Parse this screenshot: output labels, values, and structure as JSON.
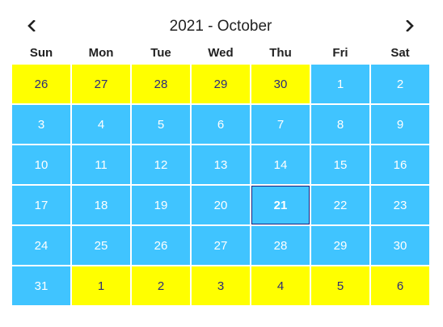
{
  "calendar": {
    "title": "2021 - October",
    "prev_icon": "chevron-left-icon",
    "next_icon": "chevron-right-icon",
    "weekdays": [
      "Sun",
      "Mon",
      "Tue",
      "Wed",
      "Thu",
      "Fri",
      "Sat"
    ],
    "days": [
      {
        "label": "26",
        "type": "other"
      },
      {
        "label": "27",
        "type": "other"
      },
      {
        "label": "28",
        "type": "other"
      },
      {
        "label": "29",
        "type": "other"
      },
      {
        "label": "30",
        "type": "other"
      },
      {
        "label": "1",
        "type": "current"
      },
      {
        "label": "2",
        "type": "current"
      },
      {
        "label": "3",
        "type": "current"
      },
      {
        "label": "4",
        "type": "current"
      },
      {
        "label": "5",
        "type": "current"
      },
      {
        "label": "6",
        "type": "current"
      },
      {
        "label": "7",
        "type": "current"
      },
      {
        "label": "8",
        "type": "current"
      },
      {
        "label": "9",
        "type": "current"
      },
      {
        "label": "10",
        "type": "current"
      },
      {
        "label": "11",
        "type": "current"
      },
      {
        "label": "12",
        "type": "current"
      },
      {
        "label": "13",
        "type": "current"
      },
      {
        "label": "14",
        "type": "current"
      },
      {
        "label": "15",
        "type": "current"
      },
      {
        "label": "16",
        "type": "current"
      },
      {
        "label": "17",
        "type": "current"
      },
      {
        "label": "18",
        "type": "current"
      },
      {
        "label": "19",
        "type": "current"
      },
      {
        "label": "20",
        "type": "current"
      },
      {
        "label": "21",
        "type": "current",
        "today": true
      },
      {
        "label": "22",
        "type": "current"
      },
      {
        "label": "23",
        "type": "current"
      },
      {
        "label": "24",
        "type": "current"
      },
      {
        "label": "25",
        "type": "current"
      },
      {
        "label": "26",
        "type": "current"
      },
      {
        "label": "27",
        "type": "current"
      },
      {
        "label": "28",
        "type": "current"
      },
      {
        "label": "29",
        "type": "current"
      },
      {
        "label": "30",
        "type": "current"
      },
      {
        "label": "31",
        "type": "current"
      },
      {
        "label": "1",
        "type": "other"
      },
      {
        "label": "2",
        "type": "other"
      },
      {
        "label": "3",
        "type": "other"
      },
      {
        "label": "4",
        "type": "other"
      },
      {
        "label": "5",
        "type": "other"
      },
      {
        "label": "6",
        "type": "other"
      }
    ]
  },
  "colors": {
    "current_month_bg": "#40c4ff",
    "current_month_text": "#ffffff",
    "other_month_bg": "#ffff00",
    "other_month_text": "#2b2b7a",
    "today_border": "#1a237e"
  }
}
